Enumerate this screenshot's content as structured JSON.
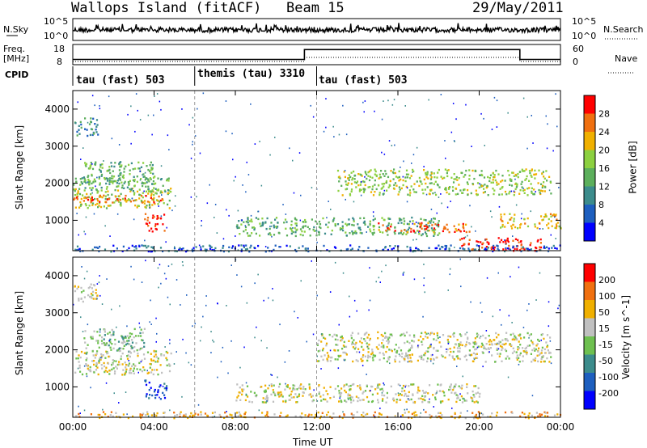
{
  "header": {
    "title": "Wallops Island (fitACF)",
    "beam": "Beam 15",
    "date": "29/May/2011"
  },
  "panels": {
    "noise": {
      "left_label": "N.Sky",
      "right_label": "N.Search",
      "left_ticks": [
        "10^5",
        "10^0"
      ],
      "right_ticks": [
        "10^5",
        "10^0"
      ]
    },
    "freq": {
      "left_label": "Freq.",
      "left_unit": "[MHz]",
      "right_label": "Nave",
      "left_ticks": [
        "18",
        "8"
      ],
      "right_ticks": [
        "60",
        "0"
      ],
      "freq_series": [
        {
          "t": 0,
          "v": 10.6
        },
        {
          "t": 11.4,
          "v": 10.6
        },
        {
          "t": 11.4,
          "v": 15.5
        },
        {
          "t": 22,
          "v": 15.5
        },
        {
          "t": 22,
          "v": 10.6
        },
        {
          "t": 24,
          "v": 10.6
        }
      ],
      "nave_series": [
        {
          "t": 0,
          "v": 0
        },
        {
          "t": 11.4,
          "v": 0
        },
        {
          "t": 11.4,
          "v": 12
        },
        {
          "t": 22,
          "v": 12
        },
        {
          "t": 22,
          "v": 0
        },
        {
          "t": 24,
          "v": 0
        }
      ]
    },
    "cpid": {
      "label": "CPID",
      "segments": [
        {
          "text": "tau (fast) 503",
          "start_hour": 0
        },
        {
          "text": "themis (tau) 3310",
          "start_hour": 6
        },
        {
          "text": "tau (fast) 503",
          "start_hour": 12
        }
      ]
    }
  },
  "chart_data": [
    {
      "type": "heatmap",
      "name": "power",
      "ylabel": "Slant Range [km]",
      "ylim": [
        180,
        4500
      ],
      "yticks": [
        1000,
        2000,
        3000,
        4000
      ],
      "colorbar_label": "Power [dB]",
      "colorbar_ticks": [
        "28",
        "24",
        "20",
        "16",
        "12",
        "8",
        "4"
      ],
      "colors": [
        "#0000ff",
        "#1e5fbf",
        "#3c8c8c",
        "#5caf5c",
        "#8cd040",
        "#f0b000",
        "#f07010",
        "#ff0000"
      ],
      "blobs": [
        {
          "t0": 0,
          "t1": 4.8,
          "r0": 1350,
          "r1": 1900,
          "level": 4
        },
        {
          "t0": 0,
          "t1": 4.6,
          "r0": 1500,
          "r1": 1700,
          "level": 6
        },
        {
          "t0": 0,
          "t1": 4.7,
          "r0": 1800,
          "r1": 2200,
          "level": 3
        },
        {
          "t0": 0,
          "t1": 1.2,
          "r0": 3300,
          "r1": 3800,
          "level": 2
        },
        {
          "t0": 3.5,
          "t1": 4.5,
          "r0": 700,
          "r1": 1200,
          "level": 7
        },
        {
          "t0": 0.5,
          "t1": 4.0,
          "r0": 2000,
          "r1": 2600,
          "level": 3
        },
        {
          "t0": 8,
          "t1": 18,
          "r0": 600,
          "r1": 1100,
          "level": 3
        },
        {
          "t0": 13,
          "t1": 23.5,
          "r0": 1700,
          "r1": 2400,
          "level": 4
        },
        {
          "t0": 15,
          "t1": 19.5,
          "r0": 700,
          "r1": 950,
          "level": 6
        },
        {
          "t0": 19,
          "t1": 23,
          "r0": 200,
          "r1": 550,
          "level": 7
        },
        {
          "t0": 21,
          "t1": 24,
          "r0": 800,
          "r1": 1200,
          "level": 5
        },
        {
          "t0": 0,
          "t1": 24,
          "r0": 180,
          "r1": 350,
          "level": 1
        }
      ]
    },
    {
      "type": "heatmap",
      "name": "velocity",
      "xlabel": "Time UT",
      "ylabel": "Slant Range [km]",
      "ylim": [
        180,
        4500
      ],
      "yticks": [
        1000,
        2000,
        3000,
        4000
      ],
      "xticks": [
        "00:00",
        "04:00",
        "08:00",
        "12:00",
        "16:00",
        "20:00",
        "00:00"
      ],
      "colorbar_label": "Velocity [m s^-1]",
      "colorbar_ticks": [
        "200",
        "100",
        "50",
        "15",
        "-15",
        "-50",
        "-100",
        "-200"
      ],
      "colors": [
        "#0000ff",
        "#1e5fbf",
        "#3c8c8c",
        "#6ec050",
        "#c0c0c0",
        "#f0b000",
        "#f07010",
        "#ff0000"
      ],
      "blobs": [
        {
          "t0": 0,
          "t1": 4.8,
          "r0": 1350,
          "r1": 2000,
          "level": 4
        },
        {
          "t0": 0.5,
          "t1": 3.5,
          "r0": 1900,
          "r1": 2600,
          "level": 3
        },
        {
          "t0": 0,
          "t1": 1.2,
          "r0": 3300,
          "r1": 3800,
          "level": 4
        },
        {
          "t0": 3.5,
          "t1": 4.6,
          "r0": 700,
          "r1": 1200,
          "level": 1
        },
        {
          "t0": 8,
          "t1": 20,
          "r0": 600,
          "r1": 1100,
          "level": 4
        },
        {
          "t0": 12,
          "t1": 23.5,
          "r0": 1700,
          "r1": 2500,
          "level": 4
        },
        {
          "t0": 0,
          "t1": 24,
          "r0": 180,
          "r1": 350,
          "level": 5
        }
      ]
    }
  ]
}
